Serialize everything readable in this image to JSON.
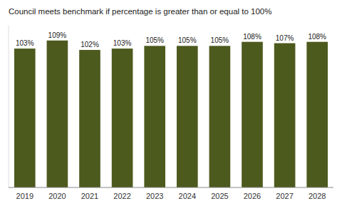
{
  "chart_data": {
    "type": "bar",
    "title": "Council meets benchmark if percentage is greater than or equal to 100%",
    "categories": [
      "2019",
      "2020",
      "2021",
      "2022",
      "2023",
      "2024",
      "2025",
      "2026",
      "2027",
      "2028"
    ],
    "values": [
      103,
      109,
      102,
      103,
      105,
      105,
      105,
      108,
      107,
      108
    ],
    "value_labels": [
      "103%",
      "109%",
      "102%",
      "103%",
      "105%",
      "105%",
      "105%",
      "108%",
      "107%",
      "108%"
    ],
    "data_labels": true,
    "color": "#4d5a1e",
    "ylim": [
      0,
      120
    ],
    "tick_labels": "x",
    "grid": false
  }
}
